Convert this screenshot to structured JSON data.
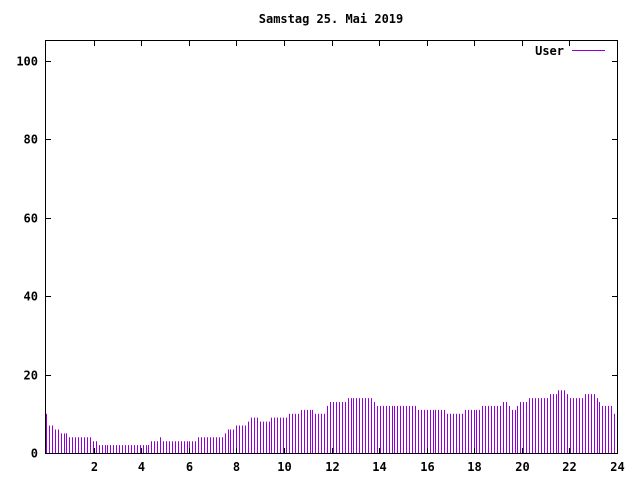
{
  "chart_data": {
    "type": "bar",
    "title": "Samstag 25. Mai 2019",
    "xlabel": "",
    "ylabel": "",
    "xlim": [
      0,
      24
    ],
    "ylim": [
      0,
      105
    ],
    "x_ticks": [
      2,
      4,
      6,
      8,
      10,
      12,
      14,
      16,
      18,
      20,
      22,
      24
    ],
    "y_ticks": [
      0,
      20,
      40,
      60,
      80,
      100
    ],
    "grid": false,
    "legend_position": "top-right",
    "series_color": "#9400d3",
    "series": [
      {
        "name": "User",
        "values": [
          10,
          7,
          7,
          6,
          6,
          5,
          5,
          5,
          4,
          4,
          4,
          4,
          4,
          4,
          4,
          4,
          3,
          3,
          2,
          2,
          2,
          2,
          2,
          2,
          2,
          2,
          2,
          2,
          2,
          2,
          2,
          2,
          2,
          2,
          2,
          2,
          3,
          3,
          3,
          4,
          3,
          3,
          3,
          3,
          3,
          3,
          3,
          3,
          3,
          3,
          3,
          3,
          4,
          4,
          4,
          4,
          4,
          4,
          4,
          4,
          4,
          5,
          6,
          6,
          6,
          7,
          7,
          7,
          7,
          8,
          9,
          9,
          9,
          8,
          8,
          8,
          8,
          9,
          9,
          9,
          9,
          9,
          9,
          10,
          10,
          10,
          10,
          11,
          11,
          11,
          11,
          11,
          10,
          10,
          10,
          10,
          12,
          13,
          13,
          13,
          13,
          13,
          13,
          14,
          14,
          14,
          14,
          14,
          14,
          14,
          14,
          14,
          13,
          12,
          12,
          12,
          12,
          12,
          12,
          12,
          12,
          12,
          12,
          12,
          12,
          12,
          12,
          11,
          11,
          11,
          11,
          11,
          11,
          11,
          11,
          11,
          11,
          10,
          10,
          10,
          10,
          10,
          10,
          11,
          11,
          11,
          11,
          11,
          11,
          12,
          12,
          12,
          12,
          12,
          12,
          12,
          13,
          13,
          12,
          11,
          11,
          12,
          13,
          13,
          13,
          14,
          14,
          14,
          14,
          14,
          14,
          14,
          15,
          15,
          15,
          16,
          16,
          16,
          15,
          14,
          14,
          14,
          14,
          14,
          15,
          15,
          15,
          15,
          14,
          13,
          12,
          12,
          12,
          12,
          10
        ]
      }
    ]
  }
}
